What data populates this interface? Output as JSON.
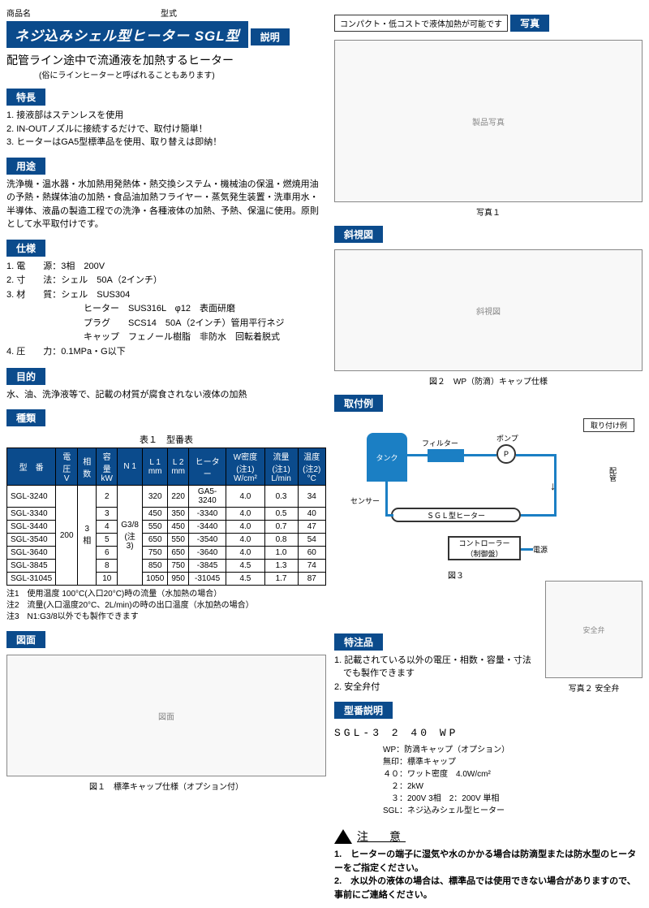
{
  "header": {
    "label_product": "商品名",
    "label_model": "型式"
  },
  "title": "ネジ込みシェル型ヒーター SGL型",
  "sections": {
    "desc": "説明",
    "features": "特長",
    "apps": "用途",
    "spec": "仕様",
    "purpose": "目的",
    "types": "種類",
    "drawing": "図面",
    "photo": "写真",
    "oblique": "斜視図",
    "install": "取付例",
    "special": "特注品",
    "model_exp": "型番説明"
  },
  "desc": {
    "main": "配管ライン途中で流通液を加熱するヒーター",
    "sub": "(俗にラインヒーターと呼ばれることもあります)"
  },
  "features": [
    "1. 接液部はステンレスを使用",
    "2. IN-OUTノズルに接続するだけで、取付け簡単！",
    "3. ヒーターはGA5型標準品を使用、取り替えは即納！"
  ],
  "apps": "洗浄機・温水器・水加熱用発熱体・熱交換システム・機械油の保温・燃焼用油の予熱・熱媒体油の加熱・食品油加熱フライヤー・蒸気発生装置・洗車用水・半導体、液晶の製造工程での洗浄・各種液体の加熱、予熱、保温に使用。原則として水平取付けです。",
  "specs": [
    "1. 電　　源：3相　200V",
    "2. 寸　　法：シェル　50A（2インチ）",
    "3. 材　　質：シェル　SUS304",
    "ヒーター　SUS316L　φ12　表面研磨",
    "プラグ　　SCS14　50A（2インチ）管用平行ネジ",
    "キャップ　フェノール樹脂　非防水　回転着脱式",
    "4. 圧　　力：0.1MPa・G以下"
  ],
  "purpose": "水、油、洗浄液等で、記載の材質が腐食されない液体の加熱",
  "table": {
    "title": "表１　型番表",
    "headers": [
      "型　番",
      "電圧\nV",
      "相数",
      "容量\nkW",
      "N 1",
      "L 1\nmm",
      "L 2\nmm",
      "ヒーター",
      "W密度(注1)\nW/cm²",
      "流量(注1)\nL/min",
      "温度(注2)\n°C"
    ],
    "rows": [
      [
        "SGL-3240",
        "200",
        "3相",
        "2",
        "G3/8\n(注3)",
        "320",
        "220",
        "GA5-3240",
        "4.0",
        "0.3",
        "34"
      ],
      [
        "SGL-3340",
        "3",
        "450",
        "350",
        "-3340",
        "4.0",
        "0.5",
        "40"
      ],
      [
        "SGL-3440",
        "4",
        "550",
        "450",
        "-3440",
        "4.0",
        "0.7",
        "47"
      ],
      [
        "SGL-3540",
        "5",
        "650",
        "550",
        "-3540",
        "4.0",
        "0.8",
        "54"
      ],
      [
        "SGL-3640",
        "6",
        "750",
        "650",
        "-3640",
        "4.0",
        "1.0",
        "60"
      ],
      [
        "SGL-3845",
        "8",
        "850",
        "750",
        "-3845",
        "4.5",
        "1.3",
        "74"
      ],
      [
        "SGL-31045",
        "10",
        "1050",
        "950",
        "-31045",
        "4.5",
        "1.7",
        "87"
      ]
    ],
    "notes": [
      "注1　使用温度 100°C(入口20°C)時の流量（水加熱の場合）",
      "注2　流量(入口温度20°C、2L/min)の時の出口温度（水加熱の場合）",
      "注3　N1:G3/8以外でも製作できます"
    ]
  },
  "top_note": "コンパクト・低コストで液体加熱が可能です",
  "captions": {
    "photo1": "写真１",
    "fig2": "図２　WP（防滴）キャップ仕様",
    "fig3": "図３",
    "photo2": "写真２ 安全弁",
    "fig1": "図１　標準キャップ仕様（オプション付）"
  },
  "diagram": {
    "title": "取り付け例",
    "tank": "タンク",
    "filter": "フィルター",
    "pump": "ポンプ",
    "p": "P",
    "pipe": "配管",
    "heater": "ＳＧＬ型ヒーター",
    "sensor": "センサー",
    "controller1": "コントローラー",
    "controller2": "（制御盤）",
    "power": "電源"
  },
  "special": [
    "1. 記載されている以外の電圧・相数・容量・寸法\n　でも製作できます",
    "2. 安全弁付"
  ],
  "model": {
    "code": "SGL-3 2 40 WP",
    "lines": [
      "WP：防滴キャップ（オプション）",
      "無印：標準キャップ",
      "４０：ワット密度　4.0W/cm²",
      "　２：2kW",
      "　３：200V 3相　2：200V 単相",
      "SGL：ネジ込みシェル型ヒーター"
    ]
  },
  "caution": {
    "title": "注　意",
    "items": [
      "1.　ヒーターの端子に湿気や水のかかる場合は防滴型または防水型のヒーターをご指定ください。",
      "2.　水以外の液体の場合は、標準品では使用できない場合がありますので、事前にご連絡ください。"
    ]
  },
  "placeholders": {
    "photo": "製品写真",
    "oblique_fig": "斜視図",
    "drawing_fig": "図面",
    "safety_fig": "安全弁"
  }
}
